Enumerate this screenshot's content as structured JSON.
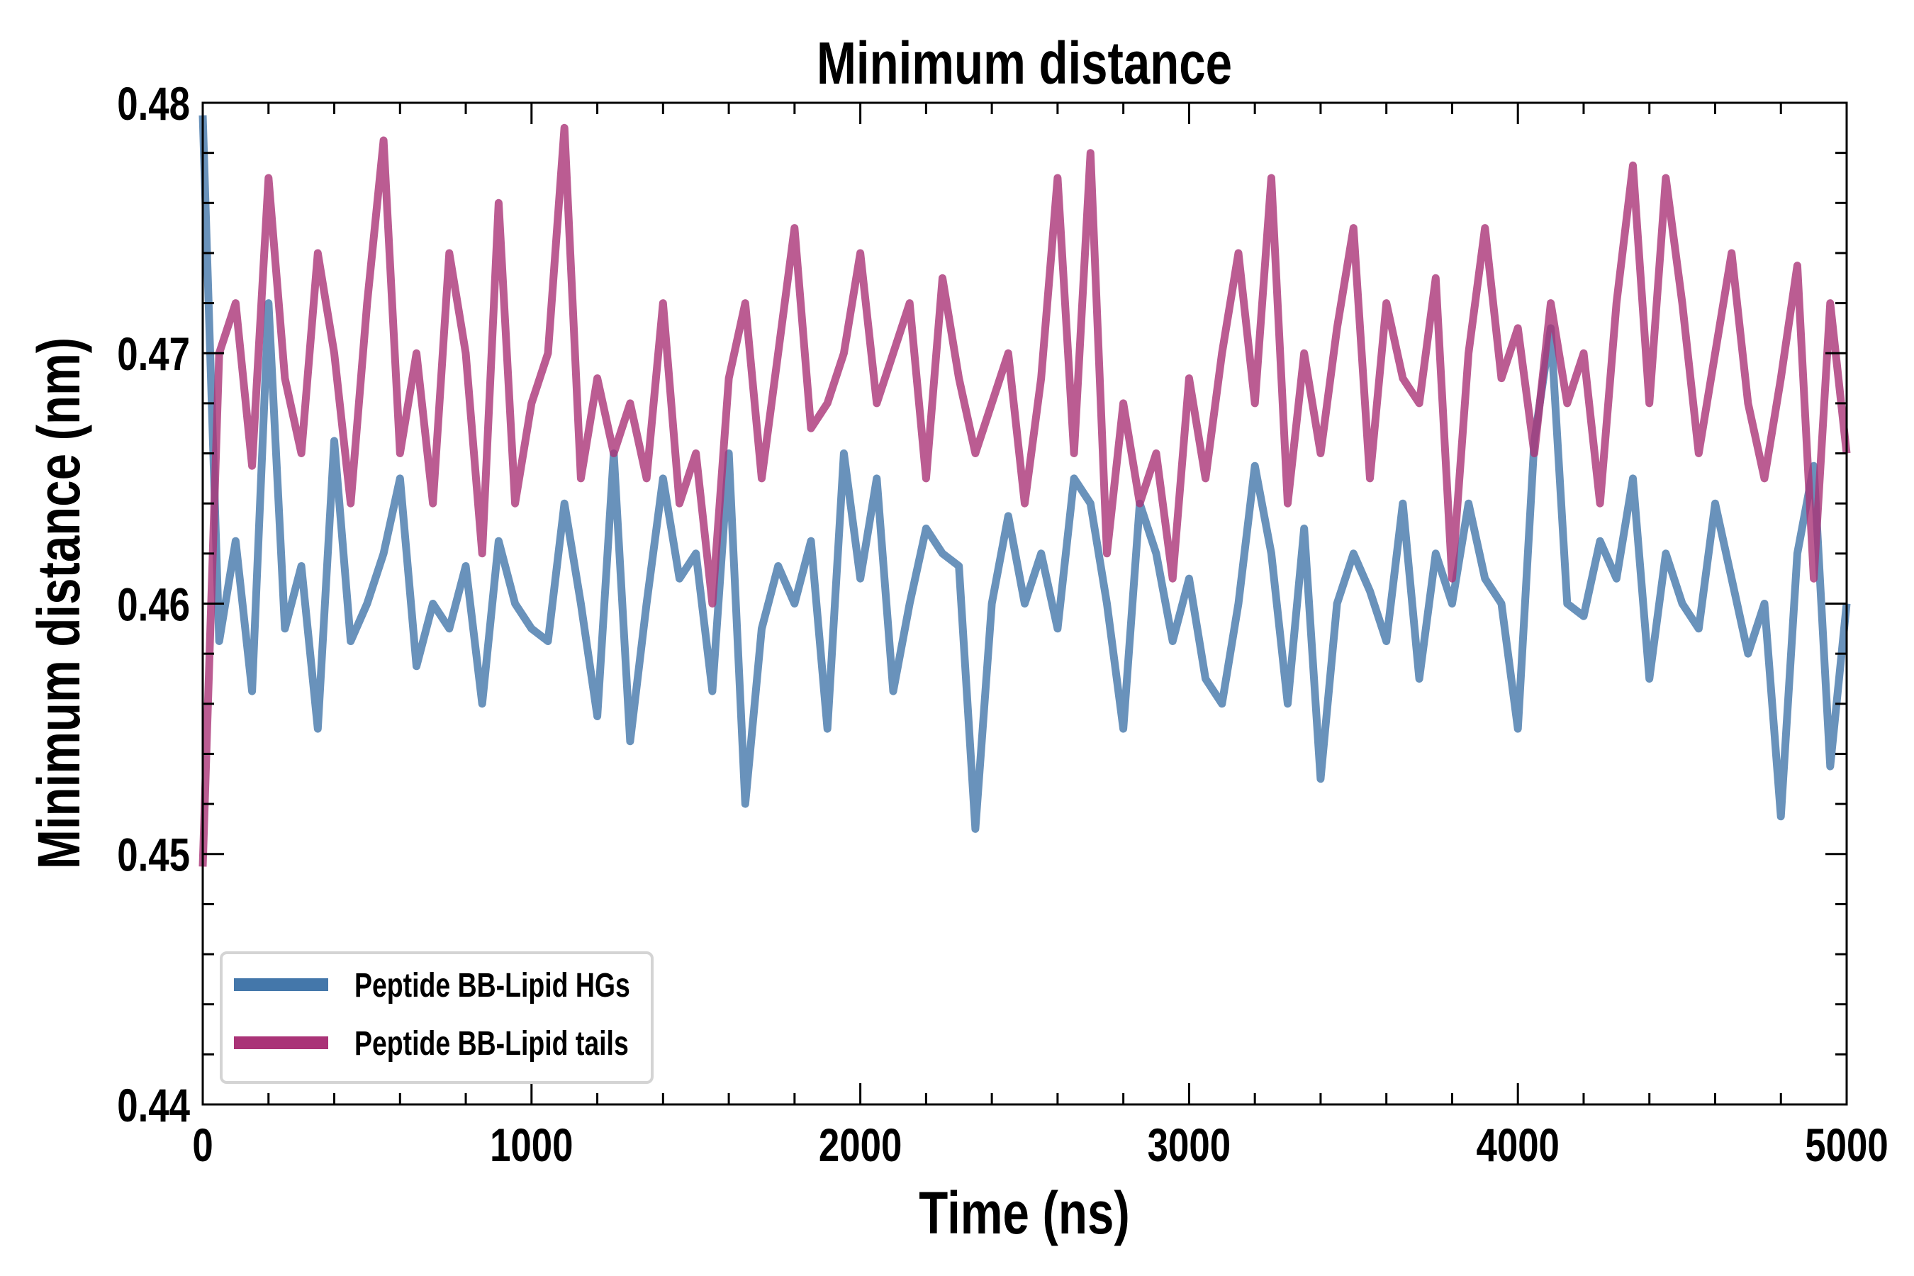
{
  "chart_data": {
    "type": "line",
    "title": "Minimum distance",
    "xlabel": "Time (ns)",
    "ylabel": "Minimum distance (nm)",
    "xlim": [
      0,
      5000
    ],
    "ylim": [
      0.44,
      0.48
    ],
    "xticks": [
      "0",
      "1000",
      "2000",
      "3000",
      "4000",
      "5000"
    ],
    "yticks": [
      "0.44",
      "0.45",
      "0.46",
      "0.47",
      "0.48"
    ],
    "grid": false,
    "legend_position": "lower-left",
    "x_start": 0,
    "x_step": 50,
    "series": [
      {
        "name": "Peptide BB-Lipid HGs",
        "color": "#4477aa",
        "values": [
          0.4795,
          0.4585,
          0.4625,
          0.4565,
          0.472,
          0.459,
          0.4615,
          0.455,
          0.4665,
          0.4585,
          0.46,
          0.462,
          0.465,
          0.4575,
          0.46,
          0.459,
          0.4615,
          0.456,
          0.4625,
          0.46,
          0.459,
          0.4585,
          0.464,
          0.46,
          0.4555,
          0.466,
          0.4545,
          0.46,
          0.465,
          0.461,
          0.462,
          0.4565,
          0.466,
          0.452,
          0.459,
          0.4615,
          0.46,
          0.4625,
          0.455,
          0.466,
          0.461,
          0.465,
          0.4565,
          0.46,
          0.463,
          0.462,
          0.4615,
          0.451,
          0.46,
          0.4635,
          0.46,
          0.462,
          0.459,
          0.465,
          0.464,
          0.46,
          0.455,
          0.464,
          0.462,
          0.4585,
          0.461,
          0.457,
          0.456,
          0.46,
          0.4655,
          0.462,
          0.456,
          0.463,
          0.453,
          0.46,
          0.462,
          0.4605,
          0.4585,
          0.464,
          0.457,
          0.462,
          0.46,
          0.464,
          0.461,
          0.46,
          0.455,
          0.4665,
          0.471,
          0.46,
          0.4595,
          0.4625,
          0.461,
          0.465,
          0.457,
          0.462,
          0.46,
          0.459,
          0.464,
          0.461,
          0.458,
          0.46,
          0.4515,
          0.462,
          0.4655,
          0.4535,
          0.46
        ]
      },
      {
        "name": "Peptide BB-Lipid tails",
        "color": "#aa3377",
        "values": [
          0.4495,
          0.47,
          0.472,
          0.4655,
          0.477,
          0.469,
          0.466,
          0.474,
          0.47,
          0.464,
          0.472,
          0.4785,
          0.466,
          0.47,
          0.464,
          0.474,
          0.47,
          0.462,
          0.476,
          0.464,
          0.468,
          0.47,
          0.479,
          0.465,
          0.469,
          0.466,
          0.468,
          0.465,
          0.472,
          0.464,
          0.466,
          0.46,
          0.469,
          0.472,
          0.465,
          0.47,
          0.475,
          0.467,
          0.468,
          0.47,
          0.474,
          0.468,
          0.47,
          0.472,
          0.465,
          0.473,
          0.469,
          0.466,
          0.468,
          0.47,
          0.464,
          0.469,
          0.477,
          0.466,
          0.478,
          0.462,
          0.468,
          0.464,
          0.466,
          0.461,
          0.469,
          0.465,
          0.47,
          0.474,
          0.468,
          0.477,
          0.464,
          0.47,
          0.466,
          0.471,
          0.475,
          0.465,
          0.472,
          0.469,
          0.468,
          0.473,
          0.461,
          0.47,
          0.475,
          0.469,
          0.471,
          0.466,
          0.472,
          0.468,
          0.47,
          0.464,
          0.472,
          0.4775,
          0.468,
          0.477,
          0.472,
          0.466,
          0.47,
          0.474,
          0.468,
          0.465,
          0.469,
          0.4735,
          0.461,
          0.472,
          0.466
        ]
      }
    ]
  }
}
